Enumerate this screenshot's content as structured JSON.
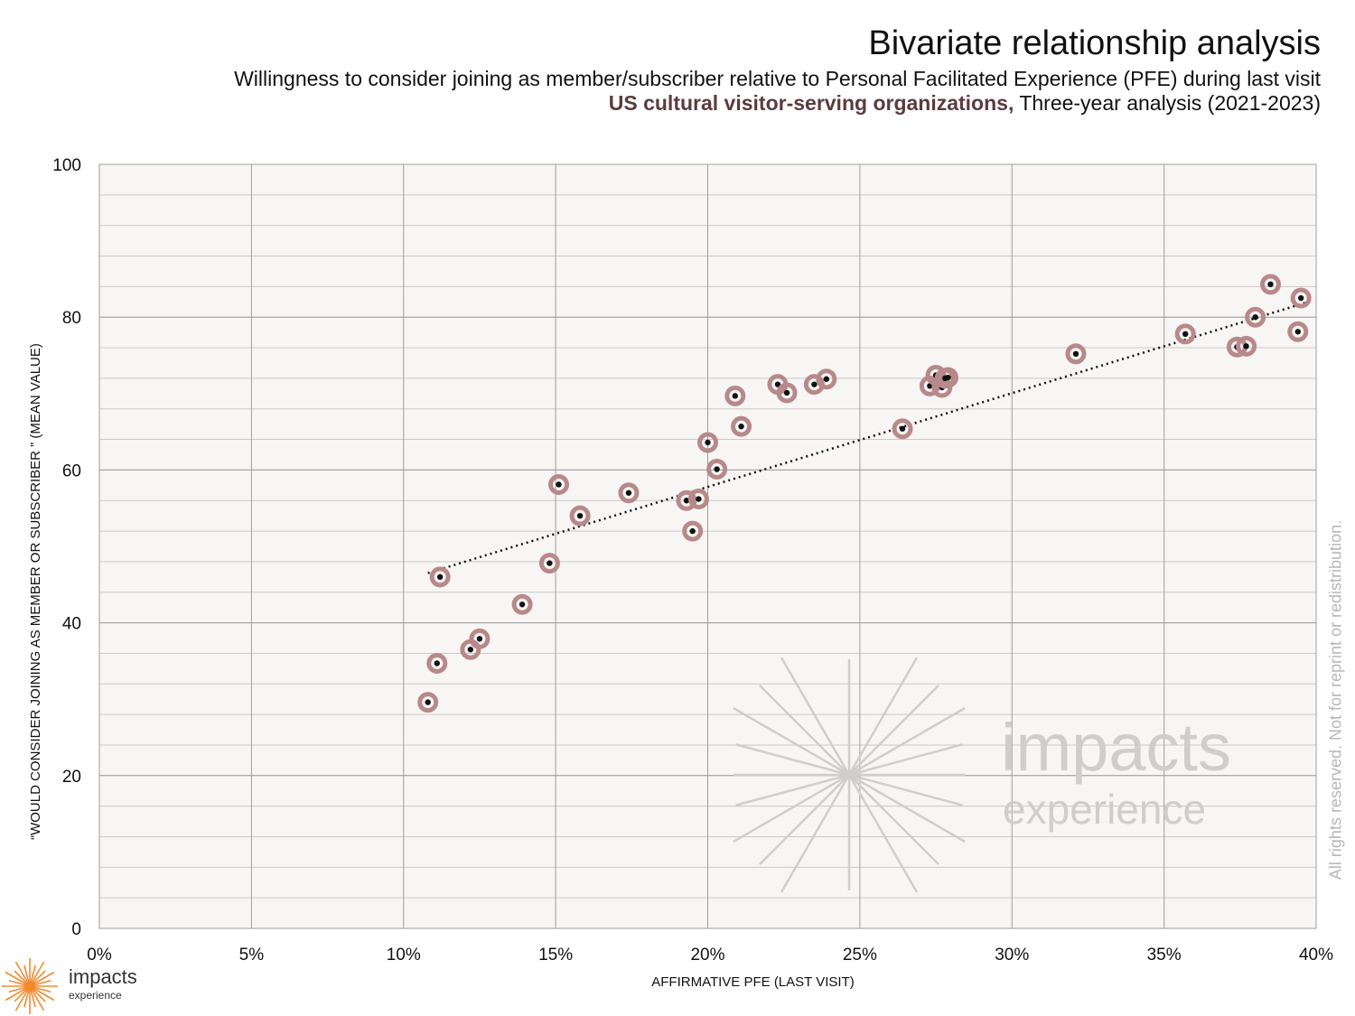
{
  "header": {
    "title": "Bivariate relationship analysis",
    "subtitle": "Willingness to consider joining as member/subscriber relative to Personal Facilitated Experience (PFE) during last visit",
    "subtitle2_accent": "US cultural visitor-serving organizations,",
    "subtitle2_rest": " Three-year analysis (2021-2023)"
  },
  "copyright": "All rights reserved. Not for reprint or redistribution.",
  "watermark": {
    "line1": "impacts",
    "line2": "experience"
  },
  "brand": {
    "name": "impacts",
    "sub": "experience"
  },
  "colors": {
    "plot_bg": "#f7f6f4",
    "grid": "#9e9e9e",
    "minor_grid": "#c9c9c9",
    "marker_halo": "#b8898a",
    "marker_dot": "#111111",
    "trendline": "#111111",
    "watermark": "#d2cdcd",
    "logo_orange": "#f28a2e"
  },
  "chart_data": {
    "type": "scatter",
    "xlabel": "AFFIRMATIVE PFE (LAST VISIT)",
    "ylabel": "“WOULD CONSIDER JOINING AS MEMBER OR SUBSCRIBER ” (MEAN VALUE)",
    "xlim": [
      0,
      0.4
    ],
    "ylim": [
      0,
      100
    ],
    "xticks": [
      0,
      0.05,
      0.1,
      0.15,
      0.2,
      0.25,
      0.3,
      0.35,
      0.4
    ],
    "xtick_labels": [
      "0%",
      "5%",
      "10%",
      "15%",
      "20%",
      "25%",
      "30%",
      "35%",
      "40%"
    ],
    "yticks": [
      0,
      20,
      40,
      60,
      80,
      100
    ],
    "ytick_labels": [
      "0",
      "20",
      "40",
      "60",
      "80",
      "100"
    ],
    "grid": true,
    "trendline": {
      "x": [
        0.108,
        0.399
      ],
      "y": [
        46.5,
        82.2
      ]
    },
    "points": [
      {
        "x": 0.108,
        "y": 29.6
      },
      {
        "x": 0.111,
        "y": 34.7
      },
      {
        "x": 0.112,
        "y": 46.0
      },
      {
        "x": 0.122,
        "y": 36.5
      },
      {
        "x": 0.125,
        "y": 37.9
      },
      {
        "x": 0.139,
        "y": 42.4
      },
      {
        "x": 0.148,
        "y": 47.8
      },
      {
        "x": 0.151,
        "y": 58.1
      },
      {
        "x": 0.158,
        "y": 54.0
      },
      {
        "x": 0.174,
        "y": 57.0
      },
      {
        "x": 0.193,
        "y": 56.0
      },
      {
        "x": 0.195,
        "y": 52.0
      },
      {
        "x": 0.197,
        "y": 56.2
      },
      {
        "x": 0.2,
        "y": 63.6
      },
      {
        "x": 0.203,
        "y": 60.1
      },
      {
        "x": 0.209,
        "y": 69.7
      },
      {
        "x": 0.211,
        "y": 65.7
      },
      {
        "x": 0.223,
        "y": 71.2
      },
      {
        "x": 0.226,
        "y": 70.1
      },
      {
        "x": 0.235,
        "y": 71.2
      },
      {
        "x": 0.239,
        "y": 71.9
      },
      {
        "x": 0.264,
        "y": 65.4
      },
      {
        "x": 0.273,
        "y": 71.0
      },
      {
        "x": 0.275,
        "y": 72.4
      },
      {
        "x": 0.277,
        "y": 70.8
      },
      {
        "x": 0.278,
        "y": 72.0
      },
      {
        "x": 0.279,
        "y": 72.1
      },
      {
        "x": 0.321,
        "y": 75.2
      },
      {
        "x": 0.357,
        "y": 77.8
      },
      {
        "x": 0.374,
        "y": 76.1
      },
      {
        "x": 0.377,
        "y": 76.2
      },
      {
        "x": 0.38,
        "y": 80.0
      },
      {
        "x": 0.385,
        "y": 84.3
      },
      {
        "x": 0.394,
        "y": 78.1
      },
      {
        "x": 0.395,
        "y": 82.5
      }
    ]
  }
}
